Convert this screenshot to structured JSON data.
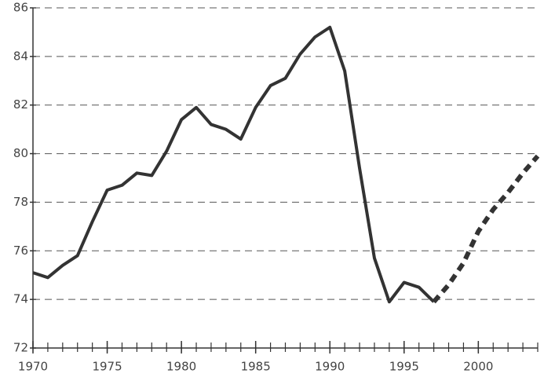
{
  "chart_data": {
    "type": "line",
    "x": [
      1970,
      1971,
      1972,
      1973,
      1974,
      1975,
      1976,
      1977,
      1978,
      1979,
      1980,
      1981,
      1982,
      1983,
      1984,
      1985,
      1986,
      1987,
      1988,
      1989,
      1990,
      1991,
      1992,
      1993,
      1994,
      1995,
      1996,
      1997,
      1998,
      1999,
      2000,
      2001,
      2002,
      2003,
      2004
    ],
    "series": [
      {
        "color": "#333333",
        "dashed": false,
        "values": [
          75.1,
          74.9,
          75.4,
          75.8,
          77.2,
          78.5,
          78.7,
          79.2,
          79.1,
          80.1,
          81.4,
          81.9,
          81.2,
          81.0,
          80.6,
          81.9,
          82.8,
          83.1,
          84.1,
          84.8,
          85.2,
          83.4,
          79.4,
          75.7,
          73.9,
          74.7,
          74.5,
          73.9,
          null,
          null,
          null,
          null,
          null,
          null,
          null
        ]
      },
      {
        "color": "#333333",
        "dashed": true,
        "values": [
          null,
          null,
          null,
          null,
          null,
          null,
          null,
          null,
          null,
          null,
          null,
          null,
          null,
          null,
          null,
          null,
          null,
          null,
          null,
          null,
          null,
          null,
          null,
          null,
          null,
          null,
          null,
          73.9,
          74.6,
          75.5,
          76.8,
          77.7,
          78.4,
          79.2,
          79.9
        ]
      }
    ],
    "xlim": [
      1970,
      2004
    ],
    "xticks": [
      1970,
      1975,
      1980,
      1985,
      1990,
      1995,
      2000
    ],
    "ylim": [
      72,
      86
    ],
    "yticks": [
      72,
      74,
      76,
      78,
      80,
      82,
      84,
      86
    ],
    "grid": true
  }
}
